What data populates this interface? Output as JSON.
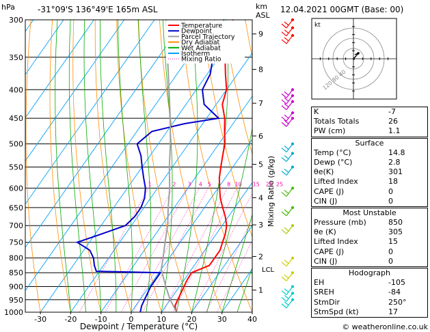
{
  "header": {
    "location": "-31°09'S 136°49'E 165m ASL",
    "datetime": "12.04.2021 00GMT (Base: 00)",
    "hpa_unit": "hPa",
    "km_unit": "km",
    "asl_unit": "ASL"
  },
  "chart_data": {
    "type": "skew-t",
    "xlabel": "Dewpoint / Temperature (°C)",
    "right_axis_label": "Mixing Ratio (g/kg)",
    "pressure_levels": [
      300,
      350,
      400,
      450,
      500,
      550,
      600,
      650,
      700,
      750,
      800,
      850,
      900,
      950,
      1000
    ],
    "pressure_range": [
      1000,
      300
    ],
    "temperature_ticks": [
      -30,
      -20,
      -10,
      0,
      10,
      20,
      30,
      40
    ],
    "temperature_range": [
      -35,
      40
    ],
    "km_ticks": [
      {
        "km": 1,
        "p": 913
      },
      {
        "km": 2,
        "p": 795
      },
      {
        "km": 3,
        "p": 698
      },
      {
        "km": 4,
        "p": 624
      },
      {
        "km": 5,
        "p": 544
      },
      {
        "km": 6,
        "p": 484
      },
      {
        "km": 7,
        "p": 423
      },
      {
        "km": 8,
        "p": 368
      },
      {
        "km": 9,
        "p": 318
      }
    ],
    "lcl": {
      "label": "LCL",
      "p": 838
    },
    "mixing_ratio_labels": [
      "1",
      "2",
      "3",
      "4",
      "5",
      "8",
      "10",
      "15",
      "20",
      "25"
    ],
    "mixing_ratio_values": [
      1,
      2,
      3,
      4,
      5,
      8,
      10,
      15,
      20,
      25
    ],
    "series": [
      {
        "name": "Temperature",
        "color": "#ff0000",
        "points": [
          [
            1000,
            15
          ],
          [
            975,
            13
          ],
          [
            950,
            12.5
          ],
          [
            925,
            12
          ],
          [
            900,
            11.5
          ],
          [
            875,
            11
          ],
          [
            850,
            10.8
          ],
          [
            825,
            15
          ],
          [
            800,
            15
          ],
          [
            775,
            15
          ],
          [
            750,
            14
          ],
          [
            725,
            13
          ],
          [
            700,
            11.5
          ],
          [
            675,
            9
          ],
          [
            650,
            6
          ],
          [
            625,
            3
          ],
          [
            600,
            0.5
          ],
          [
            575,
            -2
          ],
          [
            550,
            -4
          ],
          [
            525,
            -6
          ],
          [
            500,
            -8
          ],
          [
            475,
            -11
          ],
          [
            450,
            -14
          ],
          [
            425,
            -18
          ],
          [
            400,
            -20
          ],
          [
            375,
            -24
          ],
          [
            350,
            -28
          ],
          [
            325,
            -32
          ],
          [
            300,
            -34
          ]
        ]
      },
      {
        "name": "Dewpoint",
        "color": "#0000cc",
        "points": [
          [
            1000,
            3
          ],
          [
            975,
            2
          ],
          [
            950,
            1.5
          ],
          [
            925,
            1
          ],
          [
            900,
            0.5
          ],
          [
            875,
            0.5
          ],
          [
            850,
            0.5
          ],
          [
            845,
            -21
          ],
          [
            825,
            -23
          ],
          [
            800,
            -25
          ],
          [
            775,
            -28
          ],
          [
            750,
            -34
          ],
          [
            725,
            -28
          ],
          [
            700,
            -22
          ],
          [
            675,
            -21
          ],
          [
            650,
            -21
          ],
          [
            625,
            -22
          ],
          [
            600,
            -24
          ],
          [
            575,
            -27
          ],
          [
            550,
            -30
          ],
          [
            525,
            -33
          ],
          [
            500,
            -37
          ],
          [
            475,
            -35
          ],
          [
            460,
            -26
          ],
          [
            450,
            -16
          ],
          [
            425,
            -24
          ],
          [
            400,
            -28
          ],
          [
            375,
            -29
          ],
          [
            350,
            -32
          ],
          [
            325,
            -37
          ],
          [
            315,
            -36
          ],
          [
            300,
            -37
          ]
        ]
      },
      {
        "name": "Parcel Trajectory",
        "color": "#a0a0a0",
        "points": [
          [
            1000,
            15
          ],
          [
            950,
            10
          ],
          [
            900,
            5.5
          ],
          [
            838,
            0
          ],
          [
            800,
            -2
          ],
          [
            750,
            -5
          ],
          [
            700,
            -8
          ],
          [
            650,
            -12
          ],
          [
            600,
            -16
          ],
          [
            550,
            -21
          ],
          [
            500,
            -26
          ],
          [
            450,
            -32
          ],
          [
            400,
            -39
          ],
          [
            350,
            -47
          ],
          [
            300,
            -56
          ]
        ]
      },
      {
        "name": "Dry Adiabat",
        "color": "#ff8c00"
      },
      {
        "name": "Wet Adiabat",
        "color": "#00aa00"
      },
      {
        "name": "Isotherm",
        "color": "#00a0ff"
      },
      {
        "name": "Mixing Ratio",
        "color": "#ff00aa"
      }
    ],
    "wind_barbs": [
      {
        "p": 300,
        "color": "#ff0000"
      },
      {
        "p": 310,
        "color": "#ff0000"
      },
      {
        "p": 320,
        "color": "#ff0000"
      },
      {
        "p": 400,
        "color": "#cc00cc"
      },
      {
        "p": 410,
        "color": "#cc00cc"
      },
      {
        "p": 420,
        "color": "#cc00cc"
      },
      {
        "p": 440,
        "color": "#cc00cc"
      },
      {
        "p": 450,
        "color": "#cc00cc"
      },
      {
        "p": 500,
        "color": "#00aacc"
      },
      {
        "p": 520,
        "color": "#00aacc"
      },
      {
        "p": 550,
        "color": "#00aacc"
      },
      {
        "p": 600,
        "color": "#44bb00"
      },
      {
        "p": 650,
        "color": "#44bb00"
      },
      {
        "p": 700,
        "color": "#aacc00"
      },
      {
        "p": 800,
        "color": "#cccc00"
      },
      {
        "p": 850,
        "color": "#cccc00"
      },
      {
        "p": 900,
        "color": "#00cccc"
      },
      {
        "p": 925,
        "color": "#00cccc"
      },
      {
        "p": 950,
        "color": "#00cccc"
      }
    ]
  },
  "hodograph": {
    "unit": "kt",
    "ring_labels": [
      "20",
      "40"
    ],
    "ring_label_text": "120 80 40"
  },
  "indices": {
    "top": [
      {
        "label": "K",
        "value": "-7"
      },
      {
        "label": "Totals Totals",
        "value": "26"
      },
      {
        "label": "PW (cm)",
        "value": "1.1"
      }
    ],
    "surface": {
      "title": "Surface",
      "rows": [
        {
          "label": "Temp (°C)",
          "value": "14.8"
        },
        {
          "label": "Dewp (°C)",
          "value": "2.8"
        },
        {
          "label": "θe(K)",
          "value": "301"
        },
        {
          "label": "Lifted Index",
          "value": "18"
        },
        {
          "label": "CAPE (J)",
          "value": "0"
        },
        {
          "label": "CIN (J)",
          "value": "0"
        }
      ]
    },
    "most_unstable": {
      "title": "Most Unstable",
      "rows": [
        {
          "label": "Pressure (mb)",
          "value": "850"
        },
        {
          "label": "θe (K)",
          "value": "305"
        },
        {
          "label": "Lifted Index",
          "value": "15"
        },
        {
          "label": "CAPE (J)",
          "value": "0"
        },
        {
          "label": "CIN (J)",
          "value": "0"
        }
      ]
    },
    "hodograph_box": {
      "title": "Hodograph",
      "rows": [
        {
          "label": "EH",
          "value": "-105"
        },
        {
          "label": "SREH",
          "value": "-84"
        },
        {
          "label": "StmDir",
          "value": "250°"
        },
        {
          "label": "StmSpd (kt)",
          "value": "17"
        }
      ]
    }
  },
  "footer": {
    "credit": "© weatheronline.co.uk"
  }
}
